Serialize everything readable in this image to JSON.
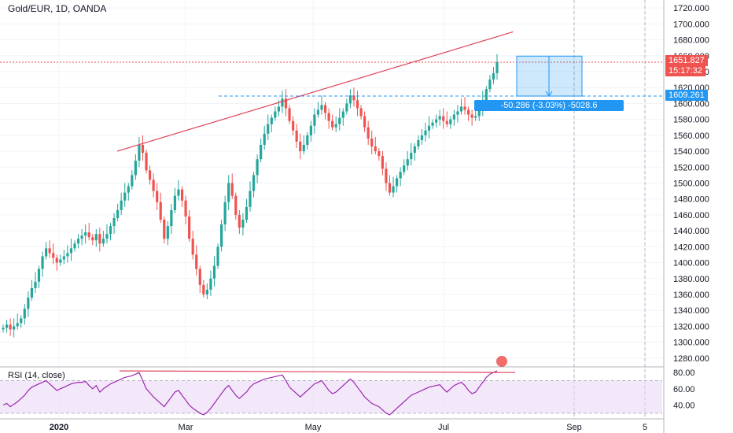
{
  "symbol_title": "Gold/EUR, 1D, OANDA",
  "rsi_title": "RSI (14, close)",
  "measure_label": "-50.286 (-3.03%) -5028.6",
  "price_badges": {
    "last_price": "1651.827",
    "countdown": "15:17:32",
    "level": "1609.261"
  },
  "colors": {
    "up": "#26a69a",
    "down": "#ef5350",
    "line": "#e0435a",
    "rsi_line": "#9c27b0",
    "rsi_band": "#e9d5f5",
    "measure": "#2196f3"
  },
  "chart_data": [
    {
      "type": "candlestick",
      "title": "Gold/EUR, 1D, OANDA",
      "ylim": [
        1270,
        1730
      ],
      "y_ticks": [
        1280,
        1300,
        1320,
        1340,
        1360,
        1380,
        1400,
        1420,
        1440,
        1460,
        1480,
        1500,
        1520,
        1540,
        1560,
        1580,
        1600,
        1620,
        1640,
        1660,
        1680,
        1700,
        1720
      ],
      "x_tick_labels": [
        "2020",
        "Mar",
        "May",
        "Jul",
        "Sep",
        "5"
      ],
      "series_close": [
        1318,
        1322,
        1316,
        1320,
        1324,
        1330,
        1342,
        1356,
        1368,
        1376,
        1392,
        1408,
        1418,
        1412,
        1406,
        1400,
        1404,
        1408,
        1412,
        1418,
        1424,
        1430,
        1434,
        1438,
        1432,
        1428,
        1436,
        1424,
        1430,
        1436,
        1446,
        1456,
        1466,
        1478,
        1488,
        1496,
        1510,
        1528,
        1548,
        1538,
        1516,
        1504,
        1490,
        1476,
        1454,
        1430,
        1446,
        1466,
        1484,
        1492,
        1478,
        1458,
        1430,
        1410,
        1392,
        1372,
        1360,
        1366,
        1380,
        1396,
        1420,
        1448,
        1476,
        1500,
        1484,
        1460,
        1444,
        1454,
        1470,
        1490,
        1510,
        1530,
        1548,
        1562,
        1574,
        1582,
        1590,
        1596,
        1606,
        1594,
        1578,
        1566,
        1552,
        1540,
        1548,
        1560,
        1572,
        1586,
        1592,
        1598,
        1588,
        1578,
        1570,
        1574,
        1582,
        1590,
        1600,
        1610,
        1604,
        1594,
        1584,
        1570,
        1556,
        1546,
        1540,
        1534,
        1518,
        1500,
        1488,
        1496,
        1506,
        1514,
        1522,
        1530,
        1538,
        1546,
        1554,
        1560,
        1566,
        1572,
        1576,
        1580,
        1584,
        1578,
        1574,
        1580,
        1586,
        1590,
        1596,
        1592,
        1586,
        1582,
        1584,
        1592,
        1604,
        1618,
        1630,
        1638,
        1652
      ],
      "resistance_line": [
        [
          0.16,
          1540
        ],
        [
          0.7,
          1690
        ]
      ],
      "support_level": 1609.261,
      "last_price": 1651.827,
      "measure": {
        "from": 1659.5,
        "to": 1609.261,
        "change": -50.286,
        "percent": -3.03,
        "ticks": -5028.6
      }
    },
    {
      "type": "line",
      "title": "RSI (14, close)",
      "ylim": [
        25,
        85
      ],
      "y_ticks": [
        40,
        60,
        80
      ],
      "band": [
        30,
        70
      ],
      "values": [
        40,
        42,
        38,
        41,
        44,
        48,
        52,
        58,
        62,
        64,
        66,
        68,
        70,
        66,
        62,
        58,
        60,
        62,
        64,
        66,
        67,
        68,
        68,
        69,
        64,
        60,
        64,
        56,
        60,
        63,
        66,
        68,
        70,
        72,
        74,
        75,
        76,
        78,
        80,
        70,
        60,
        55,
        50,
        46,
        42,
        38,
        44,
        50,
        56,
        58,
        52,
        46,
        40,
        36,
        33,
        30,
        28,
        31,
        36,
        42,
        48,
        54,
        60,
        64,
        58,
        52,
        48,
        52,
        56,
        62,
        66,
        68,
        70,
        72,
        73,
        74,
        75,
        76,
        77,
        70,
        62,
        58,
        54,
        50,
        54,
        58,
        62,
        66,
        68,
        70,
        64,
        58,
        54,
        56,
        60,
        64,
        68,
        72,
        68,
        62,
        56,
        50,
        46,
        42,
        40,
        38,
        34,
        30,
        28,
        32,
        36,
        40,
        44,
        48,
        52,
        54,
        56,
        58,
        60,
        62,
        63,
        64,
        65,
        60,
        56,
        60,
        64,
        66,
        68,
        64,
        58,
        54,
        56,
        62,
        68,
        74,
        78,
        80,
        82
      ]
    }
  ]
}
